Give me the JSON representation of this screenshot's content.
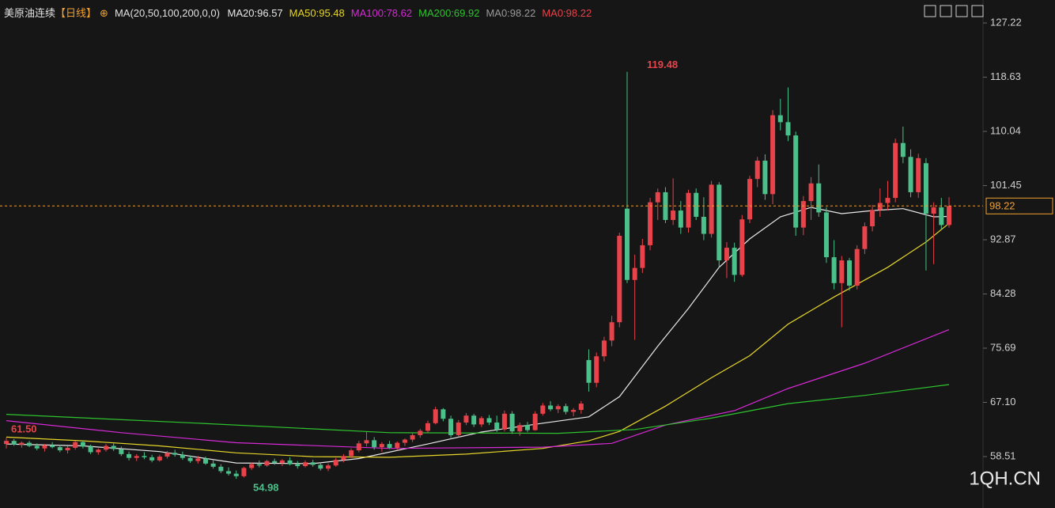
{
  "chart_data": {
    "type": "candlestick",
    "title": "美原油连续",
    "period": "【日线】",
    "indicator": "MA(20,50,100,200,0,0)",
    "watermark": "1QH.CN",
    "up_color": "#e8434a",
    "down_color": "#4cc08a",
    "ylim": [
      50.36,
      130.86
    ],
    "yticks": [
      127.22,
      118.63,
      110.04,
      101.45,
      92.87,
      84.28,
      75.69,
      67.1,
      58.51
    ],
    "open": [
      60.5,
      61.0,
      60.4,
      60.7,
      60.2,
      59.8,
      60.3,
      60.0,
      59.5,
      59.9,
      60.8,
      60.1,
      59.2,
      59.6,
      60.2,
      59.7,
      58.9,
      58.3,
      58.6,
      58.4,
      57.9,
      58.5,
      59.1,
      58.8,
      58.3,
      57.8,
      58.2,
      57.4,
      56.9,
      56.2,
      55.8,
      55.4,
      56.7,
      57.3,
      57.1,
      57.8,
      57.5,
      57.9,
      57.3,
      57.0,
      57.6,
      57.2,
      56.6,
      57.1,
      58.0,
      58.6,
      59.5,
      60.6,
      61.1,
      60.0,
      60.5,
      59.9,
      60.7,
      61.2,
      61.9,
      62.6,
      63.8,
      66.0,
      64.5,
      61.9,
      63.9,
      65.0,
      63.6,
      64.6,
      63.9,
      62.8,
      65.3,
      62.5,
      63.5,
      62.7,
      65.3,
      66.6,
      66.0,
      66.5,
      65.6,
      65.9,
      73.8,
      70.2,
      74.4,
      76.9,
      79.8,
      97.8,
      86.5,
      88.4,
      92.0,
      98.8,
      100.4,
      96.0,
      97.5,
      94.8,
      100.3,
      96.5,
      93.8,
      101.6,
      89.6,
      91.6,
      87.3,
      96.1,
      102.5,
      105.4,
      100.1,
      112.6,
      111.5,
      109.4,
      94.8,
      99.0,
      101.8,
      97.2,
      90.1,
      86.0,
      89.6,
      85.6,
      91.4,
      95.0,
      97.6,
      98.7,
      99.5,
      108.2,
      106.0,
      100.4,
      105.0,
      97.0,
      98.0,
      95.2
    ],
    "high": [
      61.5,
      61.3,
      60.9,
      61.0,
      60.6,
      60.5,
      60.8,
      60.4,
      60.2,
      61.0,
      61.1,
      60.4,
      59.8,
      60.5,
      60.6,
      60.1,
      59.3,
      58.9,
      59.2,
      58.8,
      58.8,
      59.4,
      59.6,
      59.3,
      58.7,
      58.6,
      58.5,
      57.9,
      57.3,
      56.8,
      56.3,
      56.9,
      57.6,
      57.9,
      58.0,
      58.2,
      58.1,
      58.4,
      57.8,
      57.9,
      58.0,
      57.6,
      57.4,
      58.3,
      58.9,
      59.8,
      61.0,
      62.4,
      61.6,
      60.8,
      61.0,
      60.9,
      61.4,
      62.2,
      62.9,
      64.2,
      66.4,
      66.2,
      65.0,
      64.3,
      65.4,
      65.3,
      64.9,
      65.1,
      65.0,
      65.8,
      65.7,
      63.9,
      64.0,
      65.7,
      67.0,
      67.3,
      66.8,
      66.9,
      66.2,
      67.3,
      75.5,
      75.0,
      77.5,
      80.8,
      94.0,
      119.48,
      90.5,
      93.0,
      99.5,
      101.0,
      101.2,
      102.6,
      99.0,
      100.8,
      101.0,
      99.6,
      102.2,
      102.0,
      92.5,
      92.4,
      96.8,
      103.0,
      106.0,
      106.4,
      113.4,
      115.2,
      117.0,
      110.0,
      99.8,
      102.8,
      104.8,
      98.0,
      92.8,
      90.3,
      90.0,
      92.0,
      95.6,
      98.4,
      101.0,
      102.2,
      108.9,
      110.8,
      107.2,
      106.5,
      105.8,
      98.8,
      99.5,
      99.6
    ],
    "low": [
      59.8,
      60.2,
      59.9,
      60.0,
      59.5,
      59.3,
      59.8,
      59.2,
      59.0,
      59.6,
      59.8,
      58.9,
      58.8,
      59.3,
      59.4,
      58.6,
      57.9,
      57.8,
      58.1,
      57.6,
      57.7,
      58.2,
      58.5,
      58.0,
      57.5,
      57.4,
      57.2,
      56.6,
      55.9,
      55.5,
      54.98,
      55.2,
      56.4,
      56.8,
      56.9,
      57.2,
      57.0,
      57.1,
      56.6,
      56.8,
      56.9,
      56.3,
      56.2,
      56.9,
      57.6,
      58.3,
      59.2,
      60.1,
      59.6,
      59.3,
      59.7,
      59.5,
      60.2,
      60.8,
      61.5,
      62.3,
      63.6,
      64.1,
      61.5,
      61.6,
      63.5,
      63.2,
      63.2,
      63.5,
      62.4,
      62.5,
      62.1,
      61.8,
      62.4,
      62.6,
      65.0,
      65.7,
      65.4,
      65.2,
      64.9,
      65.3,
      68.8,
      69.5,
      73.6,
      76.0,
      79.0,
      86.0,
      77.0,
      87.6,
      91.2,
      96.0,
      95.5,
      95.2,
      93.8,
      94.0,
      96.0,
      92.8,
      93.2,
      88.5,
      86.8,
      86.2,
      87.0,
      95.5,
      101.2,
      99.2,
      98.5,
      110.2,
      108.5,
      93.5,
      93.6,
      96.0,
      96.5,
      89.2,
      85.0,
      79.0,
      84.8,
      85.0,
      90.6,
      94.2,
      96.5,
      97.5,
      98.8,
      105.0,
      99.6,
      99.5,
      88.0,
      89.0,
      94.5,
      94.8
    ],
    "close": [
      61.0,
      60.4,
      60.7,
      60.2,
      59.8,
      60.3,
      60.0,
      59.5,
      59.9,
      60.8,
      60.1,
      59.2,
      59.6,
      60.2,
      59.7,
      58.9,
      58.3,
      58.6,
      58.4,
      57.9,
      58.5,
      59.1,
      58.8,
      58.3,
      57.8,
      58.2,
      57.4,
      56.9,
      56.2,
      55.8,
      55.4,
      56.7,
      57.3,
      57.1,
      57.8,
      57.5,
      57.9,
      57.3,
      57.0,
      57.6,
      57.2,
      56.6,
      57.1,
      58.0,
      58.6,
      59.5,
      60.6,
      61.1,
      60.0,
      60.5,
      59.9,
      60.7,
      61.2,
      61.9,
      62.6,
      63.8,
      66.0,
      64.5,
      61.9,
      63.9,
      65.0,
      63.6,
      64.6,
      63.9,
      62.8,
      65.3,
      62.5,
      63.5,
      62.7,
      65.3,
      66.6,
      66.0,
      66.5,
      65.6,
      65.9,
      66.9,
      70.2,
      74.4,
      76.9,
      79.8,
      93.5,
      86.5,
      88.4,
      92.0,
      98.8,
      100.4,
      96.0,
      97.5,
      94.8,
      100.3,
      96.5,
      93.8,
      101.6,
      89.6,
      91.6,
      87.3,
      96.1,
      102.5,
      105.4,
      100.1,
      112.6,
      111.5,
      109.4,
      94.8,
      99.0,
      101.8,
      97.2,
      90.1,
      86.0,
      89.6,
      85.6,
      91.4,
      95.0,
      97.6,
      98.7,
      99.5,
      108.2,
      106.0,
      100.4,
      105.8,
      97.0,
      98.0,
      95.2,
      98.22
    ],
    "series": [
      {
        "name": "MA20:96.57",
        "color": "#e8e8e8",
        "x": [
          0,
          10,
          20,
          30,
          40,
          46,
          55,
          62,
          70,
          76,
          80,
          85,
          89,
          93,
          97,
          101,
          105,
          109,
          113,
          117,
          121,
          123
        ],
        "values": [
          60.5,
          60.2,
          59.3,
          57.5,
          57.4,
          58.2,
          60.5,
          62.4,
          63.8,
          64.8,
          68,
          76,
          82,
          88.5,
          93,
          96.5,
          98.0,
          97.0,
          97.5,
          97.8,
          96.5,
          96.57
        ]
      },
      {
        "name": "MA50:95.48",
        "color": "#e6d629",
        "x": [
          0,
          10,
          20,
          30,
          40,
          50,
          60,
          70,
          76,
          80,
          86,
          92,
          97,
          102,
          108,
          115,
          120,
          123
        ],
        "values": [
          61.6,
          61,
          60.2,
          59.1,
          58.5,
          58.4,
          58.9,
          59.8,
          61,
          62.5,
          66.5,
          71,
          74.5,
          79.5,
          83.8,
          88.5,
          92.5,
          95.48
        ]
      },
      {
        "name": "MA100:78.62",
        "color": "#d62ad6",
        "x": [
          0,
          15,
          30,
          50,
          70,
          79,
          86,
          95,
          102,
          112,
          123
        ],
        "values": [
          64.2,
          62.3,
          60.7,
          59.8,
          60.0,
          60.6,
          63.5,
          65.8,
          69.3,
          73.3,
          78.62
        ]
      },
      {
        "name": "MA200:69.92",
        "color": "#2ec42e",
        "x": [
          0,
          25,
          50,
          72,
          82,
          92,
          102,
          112,
          123
        ],
        "values": [
          65.2,
          63.8,
          62.3,
          62.2,
          62.8,
          64.6,
          66.9,
          68.2,
          69.92
        ]
      }
    ],
    "extra_legend": [
      {
        "name": "MA0:98.22",
        "color": "#9a9a9a"
      },
      {
        "name": "MA0:98.22",
        "color": "#e8434a"
      }
    ],
    "annotations": [
      {
        "value": 119.48,
        "label": "119.48",
        "color": "#e8434a"
      },
      {
        "value": 61.5,
        "label": "61.50",
        "color": "#e8434a"
      },
      {
        "value": 54.98,
        "label": "54.98",
        "color": "#4cc08a"
      }
    ],
    "last_price": {
      "value": 98.22,
      "label": "98.22",
      "color": "#f0a030"
    }
  }
}
